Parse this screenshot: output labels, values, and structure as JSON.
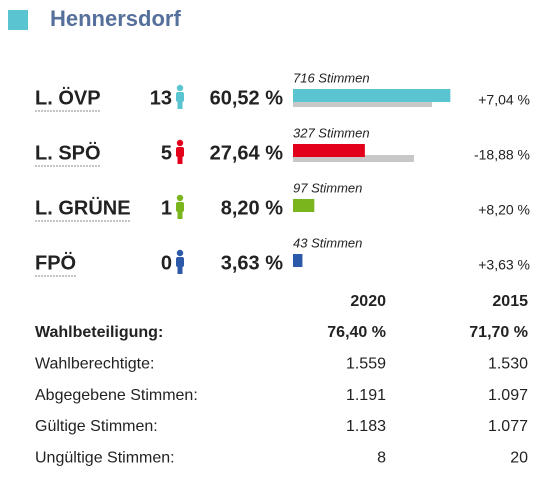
{
  "header": {
    "title": "Hennersdorf"
  },
  "parties": [
    {
      "name": "L. ÖVP",
      "seats": 13,
      "percent": 60.52,
      "percent_label": "60,52 %",
      "votes": 716,
      "votes_label": "716 Stimmen",
      "change_label": "+7,04 %",
      "previous_percent": 53.48,
      "color": "#5bc4d1"
    },
    {
      "name": "L. SPÖ",
      "seats": 5,
      "percent": 27.64,
      "percent_label": "27,64 %",
      "votes": 327,
      "votes_label": "327 Stimmen",
      "change_label": "-18,88 %",
      "previous_percent": 46.52,
      "color": "#e2001a"
    },
    {
      "name": "L. GRÜNE",
      "seats": 1,
      "percent": 8.2,
      "percent_label": "8,20 %",
      "votes": 97,
      "votes_label": "97 Stimmen",
      "change_label": "+8,20 %",
      "previous_percent": 0,
      "color": "#7ab51d"
    },
    {
      "name": "FPÖ",
      "seats": 0,
      "percent": 3.63,
      "percent_label": "3,63 %",
      "votes": 43,
      "votes_label": "43 Stimmen",
      "change_label": "+3,63 %",
      "previous_percent": 0,
      "color": "#2d5aa8"
    }
  ],
  "table": {
    "columns": [
      "2020",
      "2015"
    ],
    "rows": [
      [
        "Wahlbeteiligung:",
        "76,40 %",
        "71,70 %"
      ],
      [
        "Wahlberechtigte:",
        "1.559",
        "1.530"
      ],
      [
        "Abgegebene Stimmen:",
        "1.191",
        "1.097"
      ],
      [
        "Gültige Stimmen:",
        "1.183",
        "1.077"
      ],
      [
        "Ungültige Stimmen:",
        "8",
        "20"
      ]
    ]
  }
}
